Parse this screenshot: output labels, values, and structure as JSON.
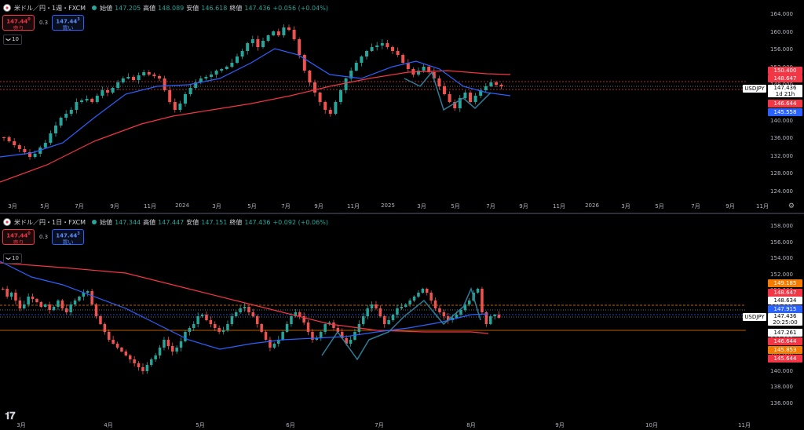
{
  "top": {
    "symbol_title": "米ドル／円・1週・FXCM",
    "ohlc": [
      {
        "k": "始値",
        "v": "147.205"
      },
      {
        "k": "高値",
        "v": "148.089"
      },
      {
        "k": "安値",
        "v": "146.618"
      },
      {
        "k": "終値",
        "v": "147.436"
      },
      {
        "k": "",
        "v": "+0.056 (+0.04%)"
      }
    ],
    "sell_price": "147.44",
    "sell_sup": "0",
    "sell_label": "売り",
    "buy_price": "147.44",
    "buy_sup": "3",
    "buy_label": "買い",
    "spread": "0.3",
    "indicator_count": "10",
    "y_ticks": [
      "164.000",
      "160.000",
      "156.000",
      "152.000",
      "148.000",
      "144.000",
      "140.000",
      "136.000",
      "132.000",
      "128.000",
      "124.000"
    ],
    "x_ticks": [
      "3月",
      "5月",
      "7月",
      "9月",
      "11月",
      "2024",
      "3月",
      "5月",
      "7月",
      "9月",
      "11月",
      "2025",
      "3月",
      "5月",
      "7月",
      "9月",
      "11月",
      "2026",
      "3月",
      "5月",
      "7月",
      "9月",
      "11月"
    ],
    "tags": [
      {
        "text": "150.400",
        "color": "#f23645"
      },
      {
        "text": "148.647",
        "color": "#f23645"
      },
      {
        "text": "146.644",
        "color": "#f23645"
      },
      {
        "text": "145.558",
        "color": "#2962ff"
      }
    ],
    "symbol_tag": "USDJPY",
    "current_price": "147.436",
    "countdown": "1d 21h"
  },
  "bottom": {
    "symbol_title": "米ドル／円・1日・FXCM",
    "ohlc": [
      {
        "k": "始値",
        "v": "147.344"
      },
      {
        "k": "高値",
        "v": "147.447"
      },
      {
        "k": "安値",
        "v": "147.151"
      },
      {
        "k": "終値",
        "v": "147.436"
      },
      {
        "k": "",
        "v": "+0.092 (+0.06%)"
      }
    ],
    "sell_price": "147.44",
    "sell_sup": "0",
    "sell_label": "売り",
    "buy_price": "147.44",
    "buy_sup": "3",
    "buy_label": "買い",
    "spread": "0.3",
    "indicator_count": "10",
    "y_ticks": [
      "158.000",
      "156.000",
      "154.000",
      "152.000",
      "150.000",
      "148.000",
      "146.000",
      "144.000",
      "142.000",
      "140.000",
      "138.000",
      "136.000"
    ],
    "x_ticks": [
      "3月",
      "4月",
      "5月",
      "6月",
      "7月",
      "8月",
      "9月",
      "10月",
      "11月"
    ],
    "tags": [
      {
        "text": "149.185",
        "color": "#f57c00"
      },
      {
        "text": "148.647",
        "color": "#f23645"
      },
      {
        "text": "148.634",
        "color": "#ffffff"
      },
      {
        "text": "147.915",
        "color": "#2962ff"
      },
      {
        "text": "147.261",
        "color": "#ffffff"
      },
      {
        "text": "146.644",
        "color": "#f23645"
      },
      {
        "text": "145.853",
        "color": "#f57c00"
      },
      {
        "text": "145.644",
        "color": "#f23645"
      }
    ],
    "symbol_tag": "USDJPY",
    "current_price": "147.436",
    "countdown": "20:25:00"
  },
  "colors": {
    "up": "#26a69a",
    "down": "#ef5350",
    "ma_short": "#2962ff",
    "ma_long": "#f23645",
    "zigzag": "#2e7d9a"
  },
  "icons": {
    "settings": "gear-icon",
    "logo": "tradingview-logo"
  }
}
